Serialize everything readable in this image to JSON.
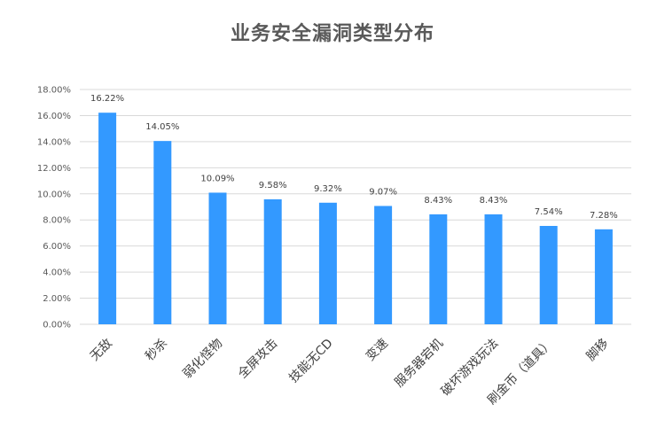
{
  "chart_data": {
    "type": "bar",
    "title": "业务安全漏洞类型分布",
    "categories": [
      "无敌",
      "秒杀",
      "弱化怪物",
      "全屏攻击",
      "技能无CD",
      "变速",
      "服务器宕机",
      "破坏游戏玩法",
      "刷金币（道具）",
      "脚移"
    ],
    "values": [
      16.22,
      14.05,
      10.09,
      9.58,
      9.32,
      9.07,
      8.43,
      8.43,
      7.54,
      7.28
    ],
    "data_labels": [
      "16.22%",
      "14.05%",
      "10.09%",
      "9.58%",
      "9.32%",
      "9.07%",
      "8.43%",
      "8.43%",
      "7.54%",
      "7.28%"
    ],
    "yticks": [
      "0.00%",
      "2.00%",
      "4.00%",
      "6.00%",
      "8.00%",
      "10.00%",
      "12.00%",
      "14.00%",
      "16.00%",
      "18.00%"
    ],
    "ylim": [
      0,
      18
    ],
    "xlabel": "",
    "ylabel": "",
    "grid": true,
    "legend": "none",
    "bar_color": "#3399FF",
    "grid_color": "#D9D9D9"
  }
}
